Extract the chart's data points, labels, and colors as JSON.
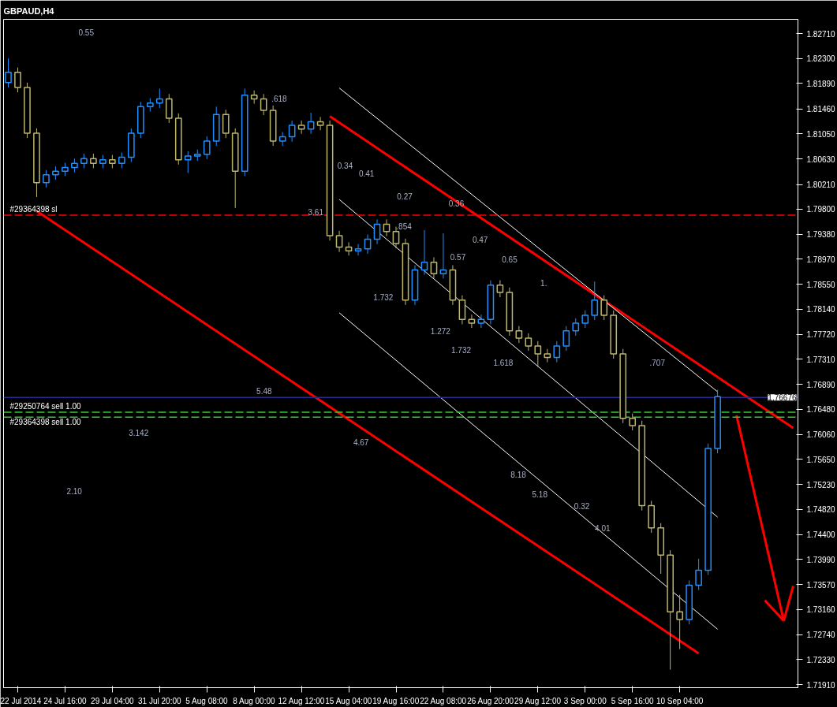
{
  "chart_data": {
    "type": "candlestick",
    "title": "GBPAUD,H4",
    "categories": [
      null,
      "22 Jul 2014",
      null,
      null,
      null,
      null,
      "24 Jul 16:00",
      null,
      null,
      null,
      null,
      "29 Jul 04:00",
      null,
      null,
      null,
      null,
      "31 Jul 20:00",
      null,
      null,
      null,
      null,
      "5 Aug 08:00",
      null,
      null,
      null,
      null,
      "8 Aug 00:00",
      null,
      null,
      null,
      null,
      "12 Aug 12:00",
      null,
      null,
      null,
      null,
      "15 Aug 04:00",
      null,
      null,
      null,
      null,
      "19 Aug 16:00",
      null,
      null,
      null,
      null,
      "22 Aug 08:00",
      null,
      null,
      null,
      null,
      "26 Aug 20:00",
      null,
      null,
      null,
      null,
      "29 Aug 12:00",
      null,
      null,
      null,
      null,
      "3 Sep 00:00",
      null,
      null,
      null,
      null,
      "5 Sep 16:00",
      null,
      null,
      null,
      null,
      "10 Sep 04:00",
      null,
      null,
      null,
      null,
      null,
      null,
      null,
      null,
      null,
      null,
      null,
      null
    ],
    "ohlc": [
      [
        1.819,
        1.823,
        1.8182,
        1.8207
      ],
      [
        1.8207,
        1.8215,
        1.8174,
        1.8182
      ],
      [
        1.8182,
        1.819,
        1.8098,
        1.8106
      ],
      [
        1.8106,
        1.8114,
        1.8,
        1.8024
      ],
      [
        1.8024,
        1.8045,
        1.8016,
        1.8037
      ],
      [
        1.8037,
        1.8051,
        1.8029,
        1.8043
      ],
      [
        1.8043,
        1.8057,
        1.8035,
        1.8049
      ],
      [
        1.8049,
        1.8064,
        1.8041,
        1.8056
      ],
      [
        1.8056,
        1.8072,
        1.8048,
        1.8064
      ],
      [
        1.8064,
        1.8072,
        1.8048,
        1.8056
      ],
      [
        1.8056,
        1.807,
        1.8048,
        1.8062
      ],
      [
        1.8062,
        1.807,
        1.8048,
        1.8056
      ],
      [
        1.8056,
        1.8074,
        1.8048,
        1.8066
      ],
      [
        1.8066,
        1.8114,
        1.8058,
        1.8106
      ],
      [
        1.8106,
        1.8158,
        1.8098,
        1.815
      ],
      [
        1.815,
        1.8164,
        1.8142,
        1.8156
      ],
      [
        1.8156,
        1.818,
        1.8148,
        1.8163
      ],
      [
        1.8163,
        1.8171,
        1.8123,
        1.8131
      ],
      [
        1.8131,
        1.8139,
        1.8054,
        1.8062
      ],
      [
        1.8062,
        1.8076,
        1.804,
        1.8068
      ],
      [
        1.8068,
        1.8079,
        1.806,
        1.8071
      ],
      [
        1.8071,
        1.8101,
        1.8063,
        1.8093
      ],
      [
        1.8093,
        1.815,
        1.8085,
        1.8137
      ],
      [
        1.8137,
        1.8145,
        1.8098,
        1.8106
      ],
      [
        1.8106,
        1.8114,
        1.7982,
        1.8043
      ],
      [
        1.8043,
        1.818,
        1.8035,
        1.8169
      ],
      [
        1.8169,
        1.8177,
        1.8155,
        1.8163
      ],
      [
        1.8163,
        1.8171,
        1.8136,
        1.8144
      ],
      [
        1.8144,
        1.8152,
        1.8085,
        1.8093
      ],
      [
        1.8093,
        1.8108,
        1.8085,
        1.81
      ],
      [
        1.81,
        1.8127,
        1.8092,
        1.8119
      ],
      [
        1.8119,
        1.8127,
        1.8105,
        1.8113
      ],
      [
        1.8113,
        1.814,
        1.8105,
        1.8125
      ],
      [
        1.8125,
        1.8133,
        1.8111,
        1.8119
      ],
      [
        1.8119,
        1.8127,
        1.7928,
        1.7936
      ],
      [
        1.7936,
        1.7944,
        1.7909,
        1.7917
      ],
      [
        1.7917,
        1.7925,
        1.7903,
        1.7911
      ],
      [
        1.7911,
        1.7922,
        1.7903,
        1.7914
      ],
      [
        1.7914,
        1.7938,
        1.7906,
        1.793
      ],
      [
        1.793,
        1.7963,
        1.7922,
        1.7955
      ],
      [
        1.7955,
        1.7963,
        1.7935,
        1.7943
      ],
      [
        1.7943,
        1.7951,
        1.7915,
        1.7923
      ],
      [
        1.7923,
        1.7931,
        1.7821,
        1.7829
      ],
      [
        1.7829,
        1.7887,
        1.7821,
        1.7879
      ],
      [
        1.7879,
        1.7945,
        1.7871,
        1.7892
      ],
      [
        1.7892,
        1.79,
        1.7865,
        1.7873
      ],
      [
        1.7873,
        1.794,
        1.7865,
        1.7879
      ],
      [
        1.7879,
        1.7887,
        1.7821,
        1.7829
      ],
      [
        1.7829,
        1.7837,
        1.7789,
        1.7797
      ],
      [
        1.7797,
        1.7805,
        1.7783,
        1.7791
      ],
      [
        1.7791,
        1.7805,
        1.7783,
        1.7797
      ],
      [
        1.7797,
        1.7862,
        1.7789,
        1.7854
      ],
      [
        1.7854,
        1.7862,
        1.7834,
        1.7842
      ],
      [
        1.7842,
        1.785,
        1.777,
        1.7778
      ],
      [
        1.7778,
        1.7786,
        1.7758,
        1.7766
      ],
      [
        1.7766,
        1.7774,
        1.7745,
        1.7753
      ],
      [
        1.7753,
        1.7761,
        1.7718,
        1.774
      ],
      [
        1.774,
        1.7748,
        1.7726,
        1.7734
      ],
      [
        1.7734,
        1.7761,
        1.7726,
        1.7753
      ],
      [
        1.7753,
        1.7786,
        1.7745,
        1.7778
      ],
      [
        1.7778,
        1.7799,
        1.777,
        1.7791
      ],
      [
        1.7791,
        1.7812,
        1.7783,
        1.7804
      ],
      [
        1.7804,
        1.786,
        1.7796,
        1.7829
      ],
      [
        1.7829,
        1.7837,
        1.7796,
        1.7804
      ],
      [
        1.7804,
        1.7812,
        1.7732,
        1.774
      ],
      [
        1.774,
        1.7748,
        1.7625,
        1.7633
      ],
      [
        1.7633,
        1.7641,
        1.7613,
        1.7621
      ],
      [
        1.7621,
        1.7629,
        1.748,
        1.7488
      ],
      [
        1.7488,
        1.7496,
        1.7443,
        1.7451
      ],
      [
        1.7451,
        1.7459,
        1.7375,
        1.7406
      ],
      [
        1.7406,
        1.7414,
        1.7216,
        1.7312
      ],
      [
        1.7312,
        1.734,
        1.725,
        1.7299
      ],
      [
        1.7299,
        1.7364,
        1.7291,
        1.7356
      ],
      [
        1.7356,
        1.74,
        1.7348,
        1.7381
      ],
      [
        1.7381,
        1.7591,
        1.7373,
        1.7583
      ],
      [
        1.7583,
        1.768,
        1.7575,
        1.7669
      ],
      null,
      null,
      null,
      null,
      null,
      null,
      null,
      null
    ],
    "colors": [
      "#1e90ff",
      "#bdb76b",
      "#bdb76b",
      "#bdb76b",
      "#1e90ff",
      "#1e90ff",
      "#1e90ff",
      "#1e90ff",
      "#1e90ff",
      "#bdb76b",
      "#1e90ff",
      "#bdb76b",
      "#1e90ff",
      "#1e90ff",
      "#1e90ff",
      "#1e90ff",
      "#1e90ff",
      "#bdb76b",
      "#bdb76b",
      "#1e90ff",
      "#1e90ff",
      "#1e90ff",
      "#1e90ff",
      "#bdb76b",
      "#bdb76b",
      "#1e90ff",
      "#bdb76b",
      "#bdb76b",
      "#bdb76b",
      "#1e90ff",
      "#1e90ff",
      "#bdb76b",
      "#1e90ff",
      "#bdb76b",
      "#bdb76b",
      "#bdb76b",
      "#bdb76b",
      "#1e90ff",
      "#1e90ff",
      "#1e90ff",
      "#bdb76b",
      "#bdb76b",
      "#bdb76b",
      "#1e90ff",
      "#1e90ff",
      "#bdb76b",
      "#1e90ff",
      "#bdb76b",
      "#bdb76b",
      "#bdb76b",
      "#1e90ff",
      "#1e90ff",
      "#bdb76b",
      "#bdb76b",
      "#bdb76b",
      "#bdb76b",
      "#bdb76b",
      "#bdb76b",
      "#1e90ff",
      "#1e90ff",
      "#1e90ff",
      "#1e90ff",
      "#1e90ff",
      "#bdb76b",
      "#bdb76b",
      "#bdb76b",
      "#bdb76b",
      "#bdb76b",
      "#bdb76b",
      "#bdb76b",
      "#bdb76b",
      "#bdb76b",
      "#1e90ff",
      "#1e90ff",
      "#1e90ff",
      "#1e90ff",
      null,
      null,
      null,
      null,
      null,
      null,
      null,
      null
    ],
    "series": [
      {
        "type": "line",
        "color": "#ff0000",
        "values": [
          null,
          null,
          null,
          1.7977,
          null,
          null,
          null,
          null,
          null,
          null,
          null,
          null,
          null,
          null,
          null,
          null,
          null,
          null,
          null,
          null,
          null,
          null,
          null,
          null,
          null,
          null,
          null,
          null,
          null,
          null,
          null,
          null,
          null,
          null,
          null,
          null,
          null,
          null,
          null,
          null,
          null,
          null,
          null,
          null,
          null,
          null,
          null,
          null,
          null,
          null,
          null,
          null,
          null,
          null,
          null,
          null,
          null,
          null,
          null,
          null,
          null,
          null,
          null,
          null,
          null,
          null,
          null,
          null,
          null,
          null,
          null,
          null,
          null,
          1.7243,
          null,
          null,
          null,
          null,
          null,
          null,
          null,
          null,
          null,
          null
        ]
      },
      {
        "type": "line",
        "color": "#ff0000",
        "values": [
          null,
          null,
          null,
          null,
          null,
          null,
          null,
          null,
          null,
          null,
          null,
          null,
          null,
          null,
          null,
          null,
          null,
          null,
          null,
          null,
          null,
          null,
          null,
          null,
          null,
          null,
          null,
          null,
          null,
          null,
          null,
          null,
          null,
          null,
          1.8134,
          null,
          null,
          null,
          null,
          null,
          null,
          null,
          null,
          null,
          null,
          null,
          null,
          null,
          null,
          null,
          null,
          null,
          null,
          null,
          null,
          null,
          null,
          null,
          null,
          null,
          null,
          null,
          null,
          null,
          null,
          null,
          null,
          null,
          null,
          null,
          null,
          null,
          null,
          null,
          null,
          null,
          null,
          null,
          null,
          null,
          null,
          null,
          null,
          1.7617
        ]
      },
      {
        "type": "line",
        "color": "#ff0000",
        "values": [
          null,
          null,
          null,
          null,
          null,
          null,
          null,
          null,
          null,
          null,
          null,
          null,
          null,
          null,
          null,
          null,
          null,
          null,
          null,
          null,
          null,
          null,
          null,
          null,
          null,
          null,
          null,
          null,
          null,
          null,
          null,
          null,
          null,
          null,
          null,
          null,
          null,
          null,
          null,
          null,
          null,
          null,
          null,
          null,
          null,
          null,
          null,
          null,
          null,
          null,
          null,
          null,
          null,
          null,
          null,
          null,
          null,
          null,
          null,
          null,
          null,
          null,
          null,
          null,
          null,
          null,
          null,
          null,
          null,
          null,
          null,
          null,
          null,
          null,
          null,
          null,
          null,
          1.7638,
          null,
          null,
          null,
          null,
          1.7297,
          null
        ]
      },
      {
        "type": "line",
        "color": "#ff0000",
        "values": [
          null,
          null,
          null,
          null,
          null,
          null,
          null,
          null,
          null,
          null,
          null,
          null,
          null,
          null,
          null,
          null,
          null,
          null,
          null,
          null,
          null,
          null,
          null,
          null,
          null,
          null,
          null,
          null,
          null,
          null,
          null,
          null,
          null,
          null,
          null,
          null,
          null,
          null,
          null,
          null,
          null,
          null,
          null,
          null,
          null,
          null,
          null,
          null,
          null,
          null,
          null,
          null,
          null,
          null,
          null,
          null,
          null,
          null,
          null,
          null,
          null,
          null,
          null,
          null,
          null,
          null,
          null,
          null,
          null,
          null,
          null,
          null,
          null,
          null,
          null,
          null,
          null,
          null,
          null,
          null,
          1.7331,
          null,
          1.7297,
          null
        ]
      },
      {
        "type": "line",
        "color": "#ff0000",
        "values": [
          null,
          null,
          null,
          null,
          null,
          null,
          null,
          null,
          null,
          null,
          null,
          null,
          null,
          null,
          null,
          null,
          null,
          null,
          null,
          null,
          null,
          null,
          null,
          null,
          null,
          null,
          null,
          null,
          null,
          null,
          null,
          null,
          null,
          null,
          null,
          null,
          null,
          null,
          null,
          null,
          null,
          null,
          null,
          null,
          null,
          null,
          null,
          null,
          null,
          null,
          null,
          null,
          null,
          null,
          null,
          null,
          null,
          null,
          null,
          null,
          null,
          null,
          null,
          null,
          null,
          null,
          null,
          null,
          null,
          null,
          null,
          null,
          null,
          null,
          null,
          null,
          null,
          null,
          null,
          null,
          null,
          null,
          1.7297,
          1.7355
        ]
      },
      {
        "type": "line",
        "color": "#ffffff",
        "values": [
          null,
          null,
          null,
          null,
          null,
          null,
          null,
          null,
          null,
          null,
          null,
          null,
          null,
          null,
          null,
          null,
          null,
          null,
          null,
          null,
          null,
          null,
          null,
          null,
          null,
          null,
          null,
          null,
          null,
          null,
          null,
          null,
          null,
          null,
          null,
          1.8181,
          null,
          null,
          null,
          null,
          null,
          null,
          null,
          null,
          null,
          null,
          null,
          null,
          null,
          null,
          null,
          null,
          null,
          null,
          null,
          null,
          null,
          null,
          null,
          null,
          null,
          null,
          null,
          null,
          null,
          null,
          null,
          null,
          null,
          null,
          null,
          null,
          null,
          null,
          null,
          1.7677,
          null,
          null,
          null,
          null,
          null,
          null,
          null,
          null
        ]
      },
      {
        "type": "line",
        "color": "#ffffff",
        "values": [
          null,
          null,
          null,
          null,
          null,
          null,
          null,
          null,
          null,
          null,
          null,
          null,
          null,
          null,
          null,
          null,
          null,
          null,
          null,
          null,
          null,
          null,
          null,
          null,
          null,
          null,
          null,
          null,
          null,
          null,
          null,
          null,
          null,
          null,
          null,
          1.7996,
          null,
          null,
          null,
          null,
          null,
          null,
          null,
          null,
          null,
          null,
          null,
          null,
          null,
          null,
          null,
          null,
          null,
          null,
          null,
          null,
          null,
          null,
          null,
          null,
          null,
          null,
          null,
          null,
          null,
          null,
          null,
          null,
          null,
          null,
          null,
          null,
          null,
          null,
          null,
          1.7469,
          null,
          null,
          null,
          null,
          null,
          null,
          null,
          null
        ]
      },
      {
        "type": "line",
        "color": "#ffffff",
        "values": [
          null,
          null,
          null,
          null,
          null,
          null,
          null,
          null,
          null,
          null,
          null,
          null,
          null,
          null,
          null,
          null,
          null,
          null,
          null,
          null,
          null,
          null,
          null,
          null,
          null,
          null,
          null,
          null,
          null,
          null,
          null,
          null,
          null,
          null,
          null,
          1.7808,
          null,
          null,
          null,
          null,
          null,
          null,
          null,
          null,
          null,
          null,
          null,
          null,
          null,
          null,
          null,
          null,
          null,
          null,
          null,
          null,
          null,
          null,
          null,
          null,
          null,
          null,
          null,
          null,
          null,
          null,
          null,
          null,
          null,
          null,
          null,
          null,
          null,
          null,
          null,
          1.7283,
          null,
          null,
          null,
          null,
          null,
          null,
          null,
          null
        ]
      }
    ],
    "ref_lines": [
      {
        "axis": "y",
        "value": 1.797,
        "label": "#29364398 sl",
        "color": "#ff0000",
        "line_style": "dashed"
      },
      {
        "axis": "y",
        "value": 1.7643,
        "label": "#29250764 sell 1.00",
        "color": "#32cd32",
        "line_style": "dashed"
      },
      {
        "axis": "y",
        "value": 1.7635,
        "label": "#29364398 sell 1.00",
        "color": "#32cd32",
        "line_style": "dashed"
      },
      {
        "axis": "y",
        "value": 1.76676,
        "label": "1.76676",
        "color": "#2a2a8a",
        "line_style": "solid"
      }
    ],
    "annotations": [
      "0.55",
      ".618",
      "0.34",
      "0.41",
      "0.27",
      "0.36",
      "3.61",
      ".854",
      "0.47",
      "0.57",
      "0.65",
      "1.",
      "1.732",
      "1.272",
      "1.732",
      "1.618",
      ".707",
      "5.48",
      "3.142",
      "4.67",
      "8.18",
      "5.18",
      "0.32",
      "4.01",
      "2.10"
    ],
    "ylim": [
      1.7186,
      1.8295
    ],
    "yticks": [
      {
        "value": 1.8271,
        "label": "1.82710"
      },
      {
        "value": 1.823,
        "label": "1.82300"
      },
      {
        "value": 1.8189,
        "label": "1.81890"
      },
      {
        "value": 1.8146,
        "label": "1.81460"
      },
      {
        "value": 1.8105,
        "label": "1.81050"
      },
      {
        "value": 1.8063,
        "label": "1.80630"
      },
      {
        "value": 1.8021,
        "label": "1.80210"
      },
      {
        "value": 1.798,
        "label": "1.79800"
      },
      {
        "value": 1.7938,
        "label": "1.79380"
      },
      {
        "value": 1.7897,
        "label": "1.78970"
      },
      {
        "value": 1.7855,
        "label": "1.78550"
      },
      {
        "value": 1.7814,
        "label": "1.78140"
      },
      {
        "value": 1.7772,
        "label": "1.77720"
      },
      {
        "value": 1.7731,
        "label": "1.77310"
      },
      {
        "value": 1.7689,
        "label": "1.76890"
      },
      {
        "value": 1.7648,
        "label": "1.76480"
      },
      {
        "value": 1.7606,
        "label": "1.76060"
      },
      {
        "value": 1.7565,
        "label": "1.75650"
      },
      {
        "value": 1.7523,
        "label": "1.75230"
      },
      {
        "value": 1.7482,
        "label": "1.74820"
      },
      {
        "value": 1.744,
        "label": "1.74400"
      },
      {
        "value": 1.7399,
        "label": "1.73990"
      },
      {
        "value": 1.7357,
        "label": "1.73570"
      },
      {
        "value": 1.7316,
        "label": "1.73160"
      },
      {
        "value": 1.7274,
        "label": "1.72740"
      },
      {
        "value": 1.7233,
        "label": "1.72330"
      },
      {
        "value": 1.7191,
        "label": "1.71910"
      }
    ]
  }
}
